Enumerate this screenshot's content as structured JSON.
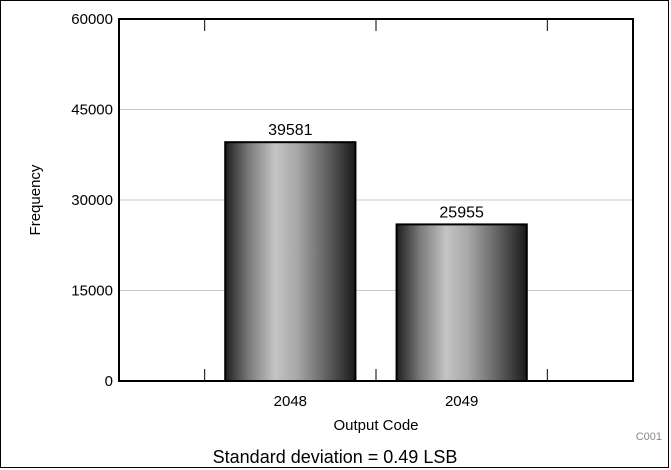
{
  "chart_data": {
    "type": "bar",
    "categories": [
      "2048",
      "2049"
    ],
    "values": [
      39581,
      25955
    ],
    "data_labels": [
      "39581",
      "25955"
    ],
    "xlabel": "Output Code",
    "ylabel": "Frequency",
    "ylim": [
      0,
      60000
    ],
    "yticks": [
      "0",
      "15000",
      "30000",
      "45000",
      "60000"
    ],
    "grid": "horizontal",
    "bar_style": "metallic gradient",
    "bar_edge_color": "#000000"
  },
  "figure_code": "C001",
  "caption": "Standard deviation = 0.49 LSB"
}
